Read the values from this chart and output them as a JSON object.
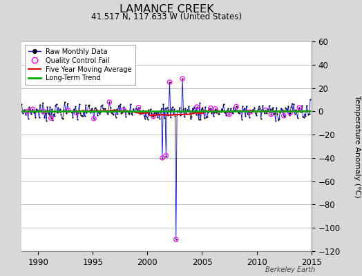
{
  "title": "LAMANCE CREEK",
  "subtitle": "41.517 N, 117.633 W (United States)",
  "ylabel": "Temperature Anomaly (°C)",
  "watermark": "Berkeley Earth",
  "xlim": [
    1988.5,
    2015.0
  ],
  "ylim": [
    -120,
    60
  ],
  "yticks": [
    -120,
    -100,
    -80,
    -60,
    -40,
    -20,
    0,
    20,
    40,
    60
  ],
  "xticks": [
    1990,
    1995,
    2000,
    2005,
    2010,
    2015
  ],
  "bg_color": "#d8d8d8",
  "plot_bg_color": "#ffffff",
  "grid_color": "#c0c0c0",
  "raw_line_color": "#0000ee",
  "raw_dot_color": "#000000",
  "qc_fail_color": "#ff00ff",
  "moving_avg_color": "#dd0000",
  "trend_color": "#00aa00",
  "seed": 7,
  "start_year": 1988.5,
  "end_year": 2014.9
}
